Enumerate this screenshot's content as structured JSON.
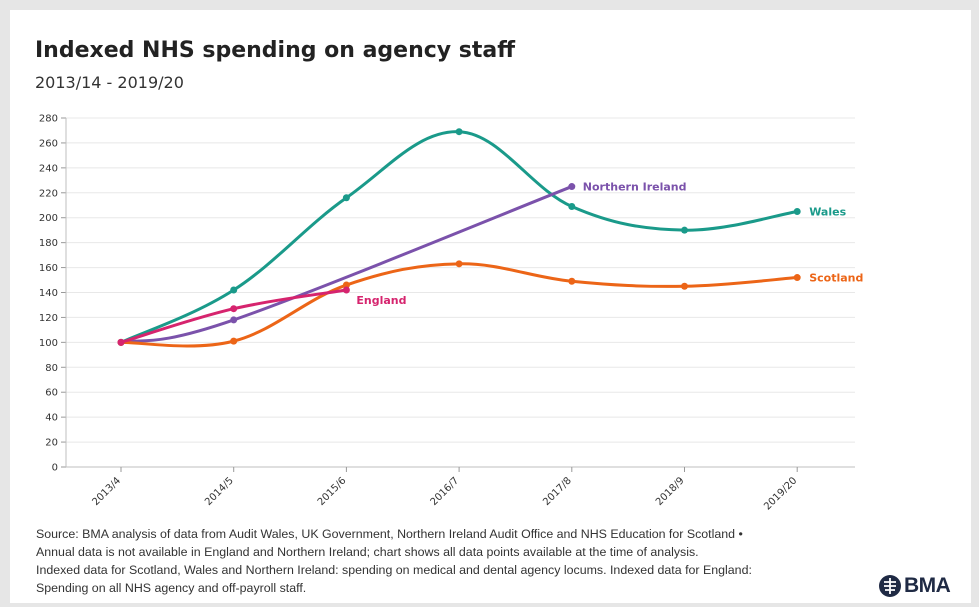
{
  "header": {
    "title": "Indexed NHS spending on agency staff",
    "subtitle": "2013/14 - 2019/20"
  },
  "footnote": {
    "lines": [
      "Source: BMA analysis of data from Audit Wales, UK Government, Northern Ireland Audit Office and NHS Education for Scotland •",
      "Annual data is not available in England and Northern Ireland; chart shows all data points available at the time of analysis.",
      "Indexed data for Scotland, Wales and Northern Ireland: spending on medical and dental agency locums. Indexed data for England:",
      "Spending on all NHS agency and off-payroll staff."
    ]
  },
  "logo": {
    "text": "BMA",
    "icon": "bma-logo-icon",
    "color": "#1f2a44"
  },
  "chart_data": {
    "type": "line",
    "title": "Indexed NHS spending on agency staff",
    "subtitle": "2013/14 - 2019/20",
    "categories": [
      "2013/4",
      "2014/5",
      "2015/6",
      "2016/7",
      "2017/8",
      "2018/9",
      "2019/20"
    ],
    "ylim": [
      0,
      280
    ],
    "yticks": [
      0,
      20,
      40,
      60,
      80,
      100,
      120,
      140,
      160,
      180,
      200,
      220,
      240,
      260,
      280
    ],
    "grid": true,
    "legend": "direct labels at line ends",
    "series": [
      {
        "name": "Wales",
        "color": "#1a9a8a",
        "values": [
          100,
          142,
          216,
          269,
          209,
          190,
          205
        ]
      },
      {
        "name": "Northern Ireland",
        "color": "#7b52ab",
        "values": [
          100,
          118,
          null,
          null,
          225,
          null,
          null
        ]
      },
      {
        "name": "Scotland",
        "color": "#ec6517",
        "values": [
          100,
          101,
          146,
          163,
          149,
          145,
          152
        ]
      },
      {
        "name": "England",
        "color": "#d6246e",
        "values": [
          100,
          127,
          142,
          null,
          null,
          null,
          null
        ]
      }
    ]
  }
}
